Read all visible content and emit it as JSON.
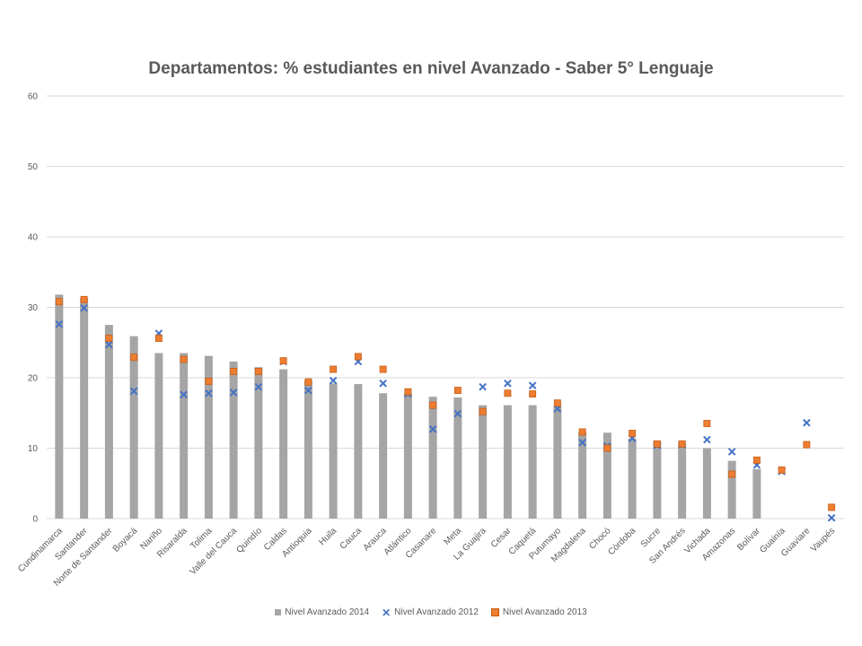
{
  "chart_data": {
    "type": "bar",
    "title": "Departamentos: % estudiantes en nivel Avanzado - Saber 5° Lenguaje",
    "xlabel": "",
    "ylabel": "",
    "ylim": [
      0,
      60
    ],
    "yticks": [
      0,
      10,
      20,
      30,
      40,
      50,
      60
    ],
    "grid": true,
    "legend": "bottom",
    "colors": {
      "bar": "#a5a5a5",
      "x_marker": "#4472c4",
      "sq_marker": "#ed7d31"
    },
    "categories": [
      "Cundinamarca",
      "Santander",
      "Norte de Santander",
      "Boyacá",
      "Nariño",
      "Risaralda",
      "Tolima",
      "Valle del Cauca",
      "Quindío",
      "Caldas",
      "Antioquia",
      "Huila",
      "Cauca",
      "Arauca",
      "Atlántico",
      "Casanare",
      "Meta",
      "La Guajira",
      "Cesar",
      "Caquetá",
      "Putumayo",
      "Magdalena",
      "Chocó",
      "Córdoba",
      "Sucre",
      "San Andrés",
      "Vichada",
      "Amazonas",
      "Bolívar",
      "Guainía",
      "Guaviare",
      "Vaupés"
    ],
    "series": [
      {
        "name": "Nivel Avanzado 2014",
        "marker": "bar",
        "values": [
          31.8,
          31.3,
          27.5,
          25.9,
          23.5,
          23.5,
          23.1,
          22.3,
          21.5,
          21.2,
          19.6,
          19.2,
          19.1,
          17.8,
          17.8,
          17.3,
          17.2,
          16.1,
          16.1,
          16.1,
          16.0,
          12.3,
          12.2,
          11.4,
          11.0,
          10.7,
          10.0,
          8.2,
          7.0,
          null,
          null,
          null
        ]
      },
      {
        "name": "Nivel Avanzado 2012",
        "marker": "x",
        "values": [
          27.6,
          29.9,
          24.7,
          18.1,
          26.3,
          17.6,
          17.8,
          17.9,
          18.7,
          22.3,
          18.2,
          19.6,
          22.3,
          19.2,
          17.7,
          12.7,
          14.9,
          18.7,
          19.2,
          18.9,
          15.6,
          10.8,
          10.3,
          11.4,
          10.4,
          10.5,
          11.2,
          9.5,
          7.6,
          6.7,
          13.6,
          0.1
        ]
      },
      {
        "name": "Nivel Avanzado 2013",
        "marker": "square",
        "values": [
          30.8,
          31.1,
          25.6,
          22.9,
          25.6,
          22.6,
          19.5,
          20.9,
          20.9,
          22.4,
          19.4,
          21.2,
          23.0,
          21.2,
          18.0,
          16.1,
          18.2,
          15.2,
          17.8,
          17.7,
          16.4,
          12.3,
          10.0,
          12.1,
          10.6,
          10.6,
          13.5,
          6.3,
          8.3,
          6.9,
          10.5,
          1.6
        ]
      }
    ]
  }
}
